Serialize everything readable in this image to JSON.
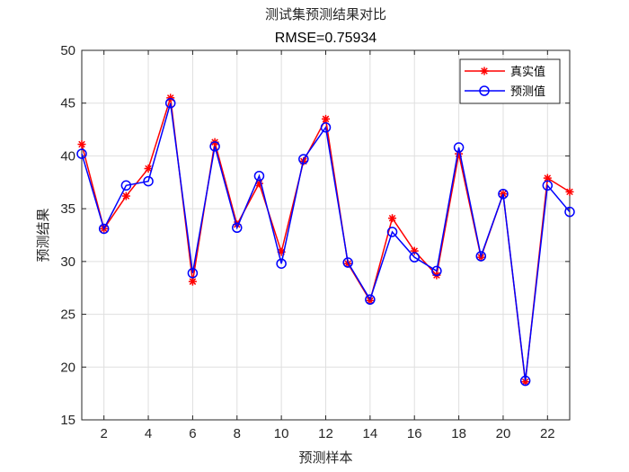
{
  "chart_data": {
    "type": "line",
    "title": "测试集预测结果对比",
    "subtitle": "RMSE=0.75934",
    "xlabel": "预测样本",
    "ylabel": "预测结果",
    "xlim": [
      1,
      23
    ],
    "ylim": [
      15,
      50
    ],
    "xticks": [
      2,
      4,
      6,
      8,
      10,
      12,
      14,
      16,
      18,
      20,
      22
    ],
    "yticks": [
      15,
      20,
      25,
      30,
      35,
      40,
      45,
      50
    ],
    "grid": true,
    "legend_position": "top-right",
    "x": [
      1,
      2,
      3,
      4,
      5,
      6,
      7,
      8,
      9,
      10,
      11,
      12,
      13,
      14,
      15,
      16,
      17,
      18,
      19,
      20,
      21,
      22,
      23
    ],
    "series": [
      {
        "name": "真实值",
        "color": "#ff0000",
        "marker": "asterisk",
        "values": [
          41.1,
          33.1,
          36.2,
          38.8,
          45.5,
          28.1,
          41.3,
          33.5,
          37.4,
          30.9,
          39.5,
          43.5,
          29.8,
          26.3,
          34.1,
          31.0,
          28.7,
          40.2,
          30.4,
          36.4,
          18.6,
          37.9,
          36.6
        ]
      },
      {
        "name": "预测值",
        "color": "#0000ff",
        "marker": "circle",
        "values": [
          40.2,
          33.1,
          37.2,
          37.6,
          45.0,
          28.9,
          40.9,
          33.2,
          38.1,
          29.8,
          39.7,
          42.7,
          29.9,
          26.4,
          32.8,
          30.4,
          29.1,
          40.8,
          30.5,
          36.4,
          18.7,
          37.2,
          34.7
        ]
      }
    ]
  }
}
